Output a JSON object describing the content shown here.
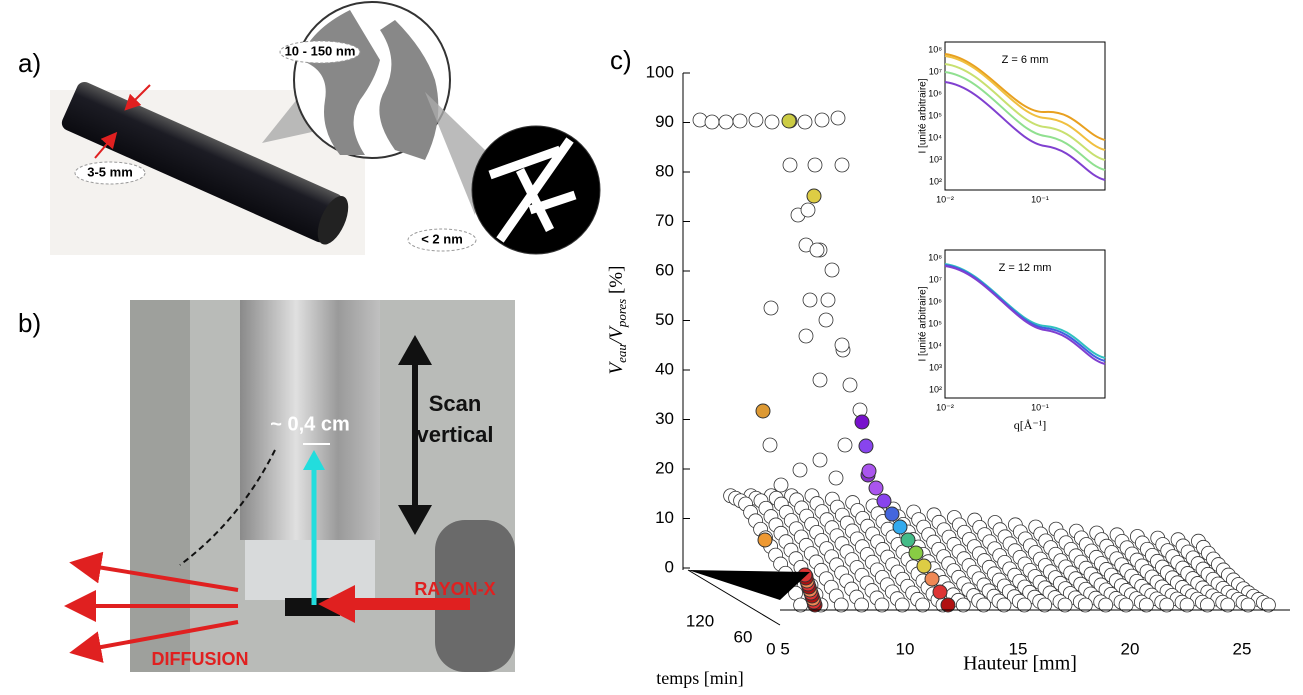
{
  "panel_a": {
    "label": "a)",
    "pore_size_meso": "10 - 150 nm",
    "rod_diameter": "3-5 mm",
    "pore_size_micro": "< 2 nm"
  },
  "panel_b": {
    "label": "b)",
    "scan_line1": "Scan",
    "scan_line2": "vertical",
    "beam_width": "~ 0,4 cm",
    "xray": "RAYON-X",
    "scattering": "DIFFUSION"
  },
  "panel_c": {
    "label": "c)",
    "y_label_parts": [
      "V",
      "eau",
      "/V",
      "pores",
      " [%]"
    ],
    "y_ticks": [
      "0",
      "10",
      "20",
      "30",
      "40",
      "50",
      "60",
      "70",
      "80",
      "90",
      "100"
    ],
    "x_ticks": [
      "0 5",
      "10",
      "15",
      "20",
      "25"
    ],
    "x_label": "Hauteur [mm]",
    "t_ticks": [
      "120",
      "60"
    ],
    "t_label": "temps [min]",
    "insets": [
      {
        "title": "Z = 6 mm",
        "y_label": "I [unité arbitraire]",
        "y_ticks": [
          "10⁸",
          "10⁷",
          "10⁶",
          "10⁵",
          "10⁴",
          "10³",
          "10²"
        ],
        "x_ticks": [
          "10⁻²",
          "10⁻¹"
        ]
      },
      {
        "title": "Z = 12 mm",
        "y_label": "I [unité arbitraire]",
        "y_ticks": [
          "10⁸",
          "10⁷",
          "10⁶",
          "10⁵",
          "10⁴",
          "10³",
          "10²"
        ],
        "x_ticks": [
          "10⁻²",
          "10⁻¹"
        ],
        "x_label": "q[Å⁻¹]"
      }
    ]
  }
}
